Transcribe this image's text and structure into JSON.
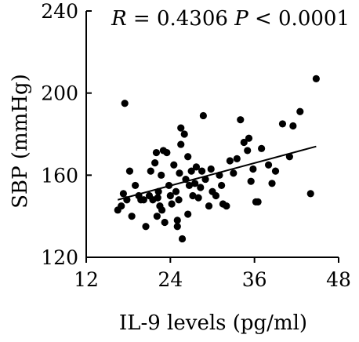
{
  "chart_data": {
    "type": "scatter",
    "xlabel": "IL-9 levels (pg/ml)",
    "ylabel": "SBP (mmHg)",
    "xlim": [
      12,
      48
    ],
    "ylim": [
      120,
      240
    ],
    "xticks": [
      "12",
      "24",
      "36",
      "48"
    ],
    "yticks": [
      "120",
      "160",
      "200",
      "240"
    ],
    "annotation": {
      "r_symbol": "R",
      "r_text": " = 0.4306 ",
      "p_symbol": "P",
      "p_text": " < 0.0001"
    },
    "trendline": {
      "x": [
        16.5,
        44.8
      ],
      "y": [
        148,
        174
      ]
    },
    "grid": false,
    "marker_color": "#000000",
    "points": [
      [
        16.5,
        143
      ],
      [
        17.0,
        145
      ],
      [
        17.3,
        151
      ],
      [
        17.5,
        195
      ],
      [
        17.8,
        148
      ],
      [
        18.2,
        162
      ],
      [
        18.5,
        140
      ],
      [
        19.0,
        155
      ],
      [
        19.5,
        150
      ],
      [
        19.8,
        148
      ],
      [
        20.2,
        148
      ],
      [
        20.5,
        135
      ],
      [
        21.0,
        150
      ],
      [
        21.2,
        162
      ],
      [
        21.5,
        148
      ],
      [
        21.8,
        166
      ],
      [
        22.0,
        171
      ],
      [
        22.1,
        140
      ],
      [
        22.2,
        149
      ],
      [
        22.3,
        152
      ],
      [
        22.5,
        145
      ],
      [
        22.7,
        160
      ],
      [
        22.8,
        143
      ],
      [
        23.0,
        172
      ],
      [
        23.2,
        137
      ],
      [
        23.5,
        171
      ],
      [
        23.8,
        155
      ],
      [
        24.0,
        150
      ],
      [
        24.2,
        146
      ],
      [
        24.5,
        165
      ],
      [
        24.8,
        152
      ],
      [
        25.0,
        135
      ],
      [
        25.0,
        138
      ],
      [
        25.2,
        148
      ],
      [
        25.3,
        161
      ],
      [
        25.5,
        175
      ],
      [
        25.5,
        183
      ],
      [
        25.7,
        129
      ],
      [
        26.0,
        180
      ],
      [
        26.2,
        158
      ],
      [
        26.5,
        169
      ],
      [
        26.5,
        141
      ],
      [
        26.7,
        155
      ],
      [
        27.0,
        162
      ],
      [
        27.2,
        150
      ],
      [
        27.5,
        156
      ],
      [
        27.7,
        164
      ],
      [
        28.0,
        149
      ],
      [
        28.3,
        154
      ],
      [
        28.5,
        162
      ],
      [
        28.7,
        189
      ],
      [
        29.0,
        158
      ],
      [
        29.5,
        145
      ],
      [
        29.8,
        163
      ],
      [
        30.0,
        152
      ],
      [
        30.5,
        150
      ],
      [
        31.0,
        160
      ],
      [
        31.3,
        155
      ],
      [
        31.5,
        146
      ],
      [
        32.0,
        145
      ],
      [
        32.5,
        167
      ],
      [
        33.0,
        161
      ],
      [
        33.5,
        168
      ],
      [
        34.0,
        187
      ],
      [
        34.5,
        176
      ],
      [
        35.0,
        172
      ],
      [
        35.2,
        178
      ],
      [
        35.5,
        157
      ],
      [
        35.8,
        163
      ],
      [
        36.2,
        147
      ],
      [
        36.5,
        147
      ],
      [
        37.0,
        173
      ],
      [
        38.0,
        165
      ],
      [
        38.5,
        156
      ],
      [
        39.0,
        162
      ],
      [
        40.0,
        185
      ],
      [
        41.0,
        169
      ],
      [
        41.5,
        184
      ],
      [
        42.5,
        191
      ],
      [
        44.0,
        151
      ],
      [
        44.8,
        207
      ]
    ]
  }
}
